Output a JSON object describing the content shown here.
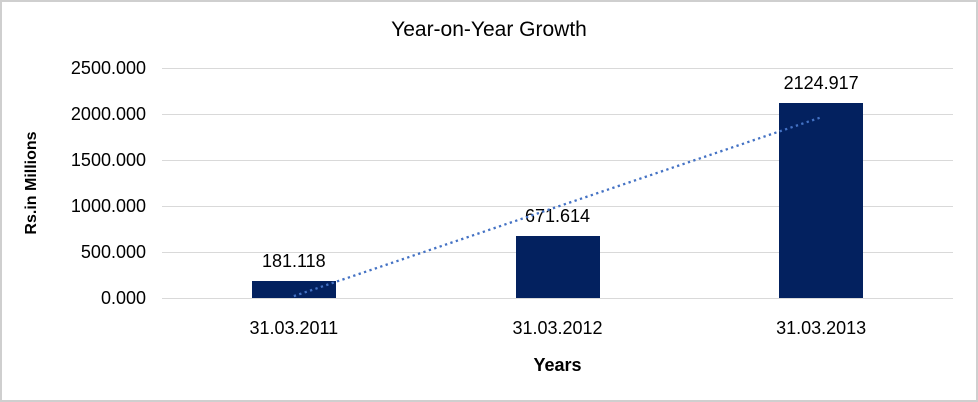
{
  "window": {
    "background_color": "#ffffff",
    "border_color": "#cfcfcf"
  },
  "chart_data": {
    "type": "bar",
    "title": "Year-on-Year Growth",
    "categories": [
      "31.03.2011",
      "31.03.2012",
      "31.03.2013"
    ],
    "values": [
      181.118,
      671.614,
      2124.917
    ],
    "data_labels": [
      "181.118",
      "671.614",
      "2124.917"
    ],
    "xlabel": "Years",
    "ylabel": "Rs.in Millions",
    "ylim": [
      0,
      2500
    ],
    "ytick_interval": 500,
    "ytick_labels": [
      "0.000",
      "500.000",
      "1000.000",
      "1500.000",
      "2000.000",
      "2500.000"
    ],
    "grid": true,
    "legend_position": "none",
    "bar_color": "#03215f",
    "gridline_color": "#d9d9d9",
    "trendline": {
      "type": "linear",
      "style": "dotted",
      "color": "#4472c4"
    }
  }
}
